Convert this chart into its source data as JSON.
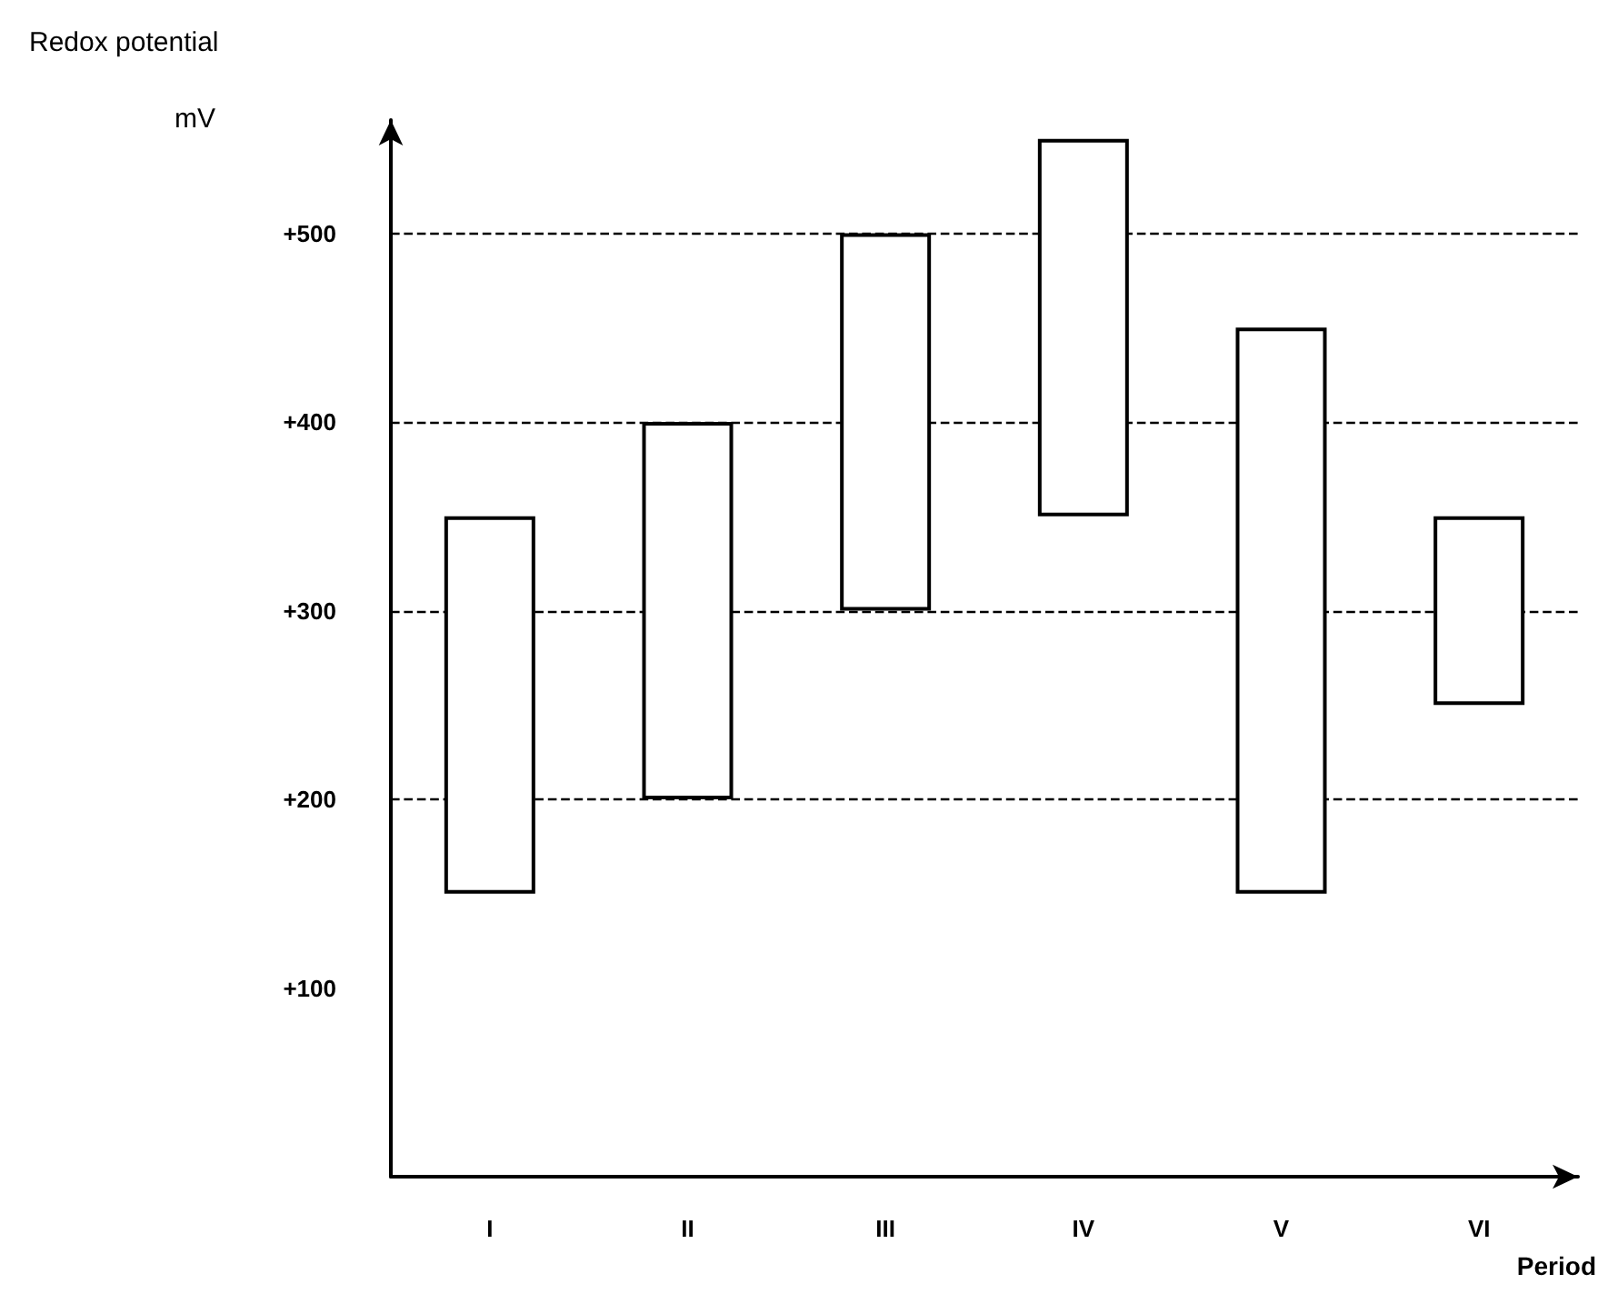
{
  "chart_data": {
    "type": "bar",
    "ylabel": "Redox potential",
    "xlabel": "Period",
    "annotations": [
      "mV"
    ],
    "categories": [
      "I",
      "II",
      "III",
      "IV",
      "V",
      "VI"
    ],
    "base": [
      150,
      200,
      300,
      350,
      150,
      250
    ],
    "values": [
      200,
      200,
      200,
      200,
      300,
      100
    ],
    "color": "#ffffff",
    "ylim": [
      0,
      560
    ],
    "yticks": [
      {
        "value": 100,
        "label": "+100"
      },
      {
        "value": 200,
        "label": "+200"
      },
      {
        "value": 300,
        "label": "+300"
      },
      {
        "value": 400,
        "label": "+400"
      },
      {
        "value": 500,
        "label": "+500"
      }
    ],
    "grid": false,
    "ref_lines": [
      {
        "axis": "y",
        "value": 200,
        "line_style": "dashed",
        "color": "#000000"
      },
      {
        "axis": "y",
        "value": 300,
        "line_style": "dashed",
        "color": "#000000"
      },
      {
        "axis": "y",
        "value": 400,
        "line_style": "dashed",
        "color": "#000000"
      },
      {
        "axis": "y",
        "value": 500,
        "line_style": "dashed",
        "color": "#000000"
      }
    ]
  }
}
